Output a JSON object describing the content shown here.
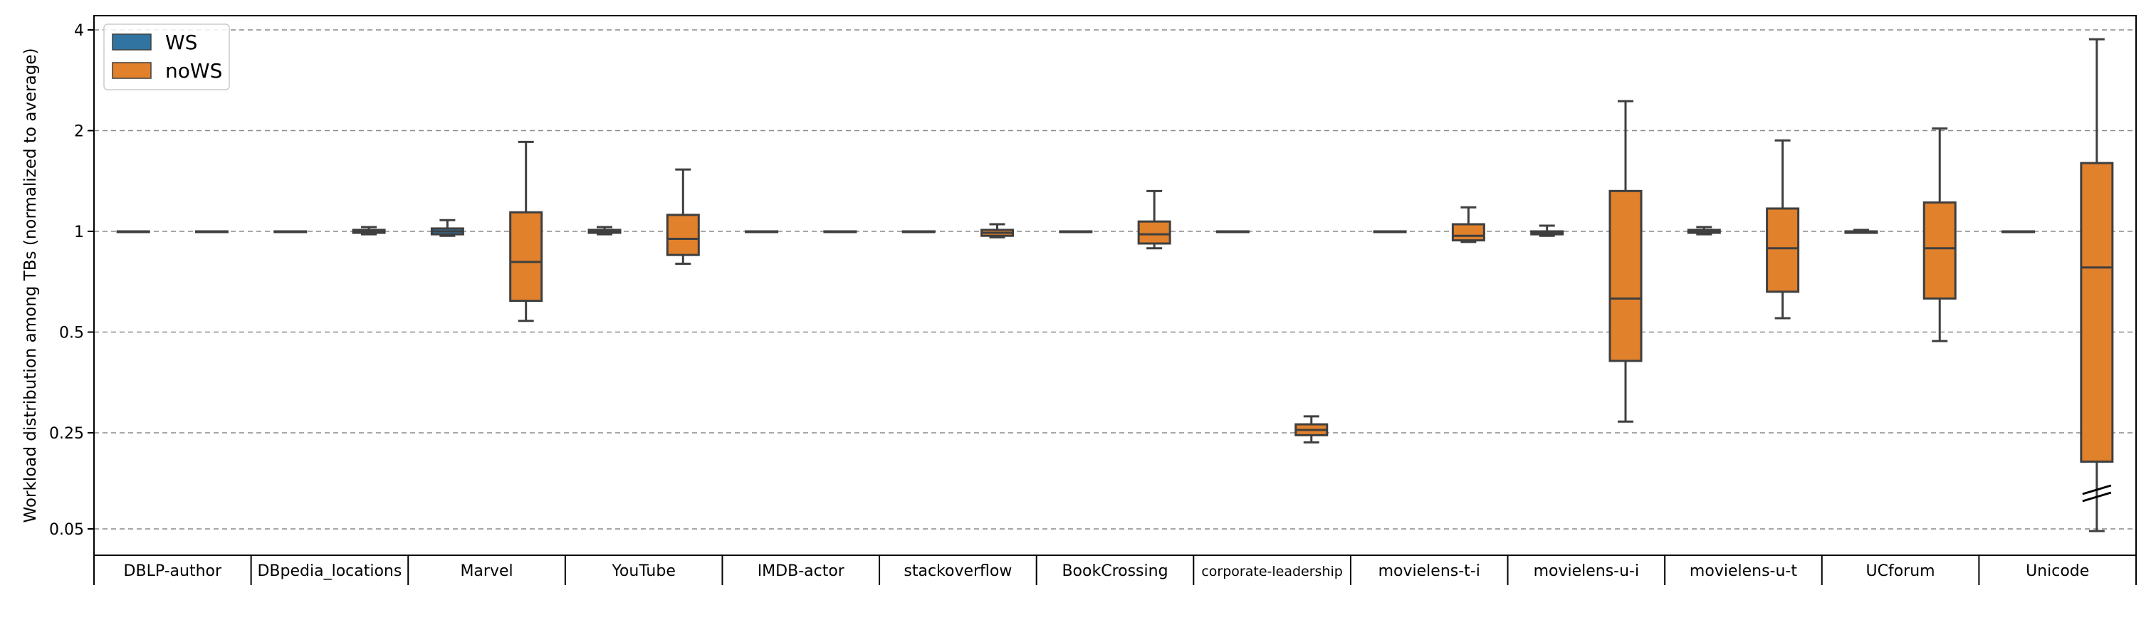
{
  "chart_data": {
    "type": "box",
    "ylabel": "Workload distribution among TBs (normalized to average)",
    "xlabel": "",
    "y_scale": "log2 with axis break between 0.05 and 0.25",
    "y_ticks": [
      {
        "value": 0.05,
        "label": "0.05"
      },
      {
        "value": 0.25,
        "label": "0.25"
      },
      {
        "value": 0.5,
        "label": "0.5"
      },
      {
        "value": 1,
        "label": "1"
      },
      {
        "value": 2,
        "label": "2"
      },
      {
        "value": 4,
        "label": "4"
      }
    ],
    "grid": "horizontal dashed at tick values",
    "legend": {
      "placement": "top-left",
      "entries": [
        {
          "name": "WS",
          "color": "#3274a1"
        },
        {
          "name": "noWS",
          "color": "#e1812c"
        }
      ]
    },
    "categories": [
      "DBLP-author",
      "DBpedia_locations",
      "Marvel",
      "YouTube",
      "IMDB-actor",
      "stackoverflow",
      "BookCrossing",
      "corporate-leadership",
      "movielens-t-i",
      "movielens-u-i",
      "movielens-u-t",
      "UCforum",
      "Unicode"
    ],
    "series": [
      {
        "name": "WS",
        "color": "#3274a1",
        "boxes": [
          {
            "whislo": 1.0,
            "q1": 1.0,
            "med": 1.0,
            "q3": 1.0,
            "whishi": 1.0
          },
          {
            "whislo": 1.0,
            "q1": 1.0,
            "med": 1.0,
            "q3": 1.0,
            "whishi": 1.0
          },
          {
            "whislo": 0.97,
            "q1": 0.98,
            "med": 1.0,
            "q3": 1.02,
            "whishi": 1.08
          },
          {
            "whislo": 0.98,
            "q1": 0.99,
            "med": 1.0,
            "q3": 1.01,
            "whishi": 1.03
          },
          {
            "whislo": 1.0,
            "q1": 1.0,
            "med": 1.0,
            "q3": 1.0,
            "whishi": 1.0
          },
          {
            "whislo": 1.0,
            "q1": 1.0,
            "med": 1.0,
            "q3": 1.0,
            "whishi": 1.0
          },
          {
            "whislo": 1.0,
            "q1": 1.0,
            "med": 1.0,
            "q3": 1.0,
            "whishi": 1.0
          },
          {
            "whislo": 1.0,
            "q1": 1.0,
            "med": 1.0,
            "q3": 1.0,
            "whishi": 1.0
          },
          {
            "whislo": 1.0,
            "q1": 1.0,
            "med": 1.0,
            "q3": 1.0,
            "whishi": 1.0
          },
          {
            "whislo": 0.97,
            "q1": 0.98,
            "med": 0.99,
            "q3": 1.0,
            "whishi": 1.04
          },
          {
            "whislo": 0.98,
            "q1": 0.99,
            "med": 1.0,
            "q3": 1.01,
            "whishi": 1.03
          },
          {
            "whislo": 0.99,
            "q1": 0.99,
            "med": 1.0,
            "q3": 1.0,
            "whishi": 1.01
          },
          {
            "whislo": 1.0,
            "q1": 1.0,
            "med": 1.0,
            "q3": 1.0,
            "whishi": 1.0
          }
        ]
      },
      {
        "name": "noWS",
        "color": "#e1812c",
        "boxes": [
          {
            "whislo": 1.0,
            "q1": 1.0,
            "med": 1.0,
            "q3": 1.0,
            "whishi": 1.0
          },
          {
            "whislo": 0.98,
            "q1": 0.99,
            "med": 1.0,
            "q3": 1.01,
            "whishi": 1.03
          },
          {
            "whislo": 0.54,
            "q1": 0.62,
            "med": 0.81,
            "q3": 1.14,
            "whishi": 1.85
          },
          {
            "whislo": 0.8,
            "q1": 0.85,
            "med": 0.95,
            "q3": 1.12,
            "whishi": 1.53
          },
          {
            "whislo": 1.0,
            "q1": 1.0,
            "med": 1.0,
            "q3": 1.0,
            "whishi": 1.0
          },
          {
            "whislo": 0.96,
            "q1": 0.97,
            "med": 0.99,
            "q3": 1.01,
            "whishi": 1.05
          },
          {
            "whislo": 0.89,
            "q1": 0.92,
            "med": 0.98,
            "q3": 1.07,
            "whishi": 1.32
          },
          {
            "whislo": 0.23,
            "q1": 0.245,
            "med": 0.255,
            "q3": 0.265,
            "whishi": 0.28
          },
          {
            "whislo": 0.93,
            "q1": 0.94,
            "med": 0.97,
            "q3": 1.05,
            "whishi": 1.18
          },
          {
            "whislo": 0.27,
            "q1": 0.41,
            "med": 0.63,
            "q3": 1.32,
            "whishi": 2.45
          },
          {
            "whislo": 0.55,
            "q1": 0.66,
            "med": 0.89,
            "q3": 1.17,
            "whishi": 1.87
          },
          {
            "whislo": 0.47,
            "q1": 0.63,
            "med": 0.89,
            "q3": 1.22,
            "whishi": 2.03
          },
          {
            "whislo": 0.045,
            "q1": 0.19,
            "med": 0.78,
            "q3": 1.6,
            "whishi": 3.75
          }
        ]
      }
    ]
  }
}
